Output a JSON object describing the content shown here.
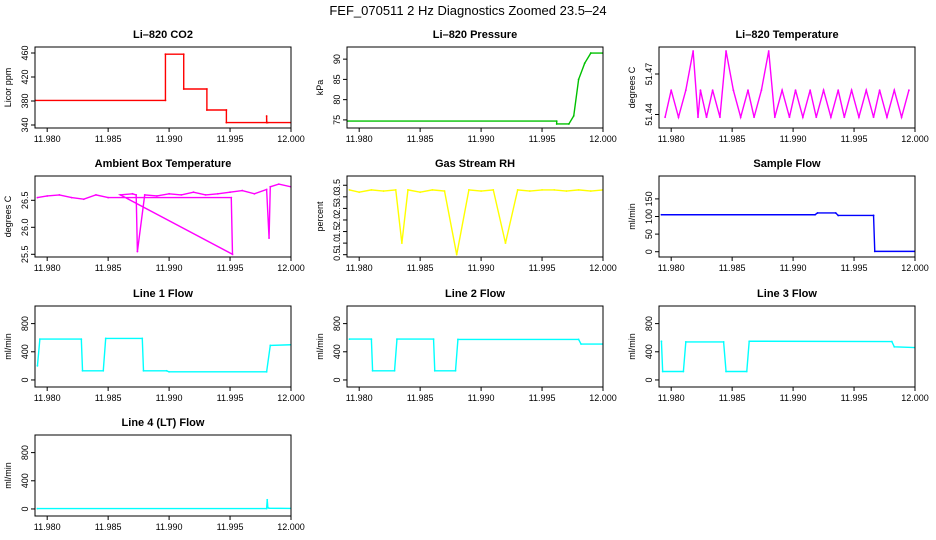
{
  "title": "FEF_070511  2 Hz Diagnostics Zoomed 23.5–24",
  "chart_data": [
    {
      "type": "line",
      "title": "Li–820 CO2",
      "ylabel": "Licor ppm",
      "color": "#ff0000",
      "xlim": [
        11.979,
        12.0
      ],
      "ylim": [
        335,
        470
      ],
      "yticks": [
        340,
        380,
        420,
        460
      ],
      "xticks": [
        11.98,
        11.985,
        11.99,
        11.995,
        12.0
      ],
      "xtick_labels": [
        "11.980",
        "11.985",
        "11.990",
        "11.995",
        "12.000"
      ],
      "x": [
        11.979,
        11.9897,
        11.9897,
        11.9912,
        11.9912,
        11.9931,
        11.9931,
        11.9947,
        11.9947,
        11.998,
        11.998,
        11.99801,
        11.9981,
        12.0
      ],
      "y": [
        381,
        381,
        458,
        458,
        400,
        400,
        365,
        365,
        344,
        344,
        355,
        344,
        344,
        344
      ]
    },
    {
      "type": "line",
      "title": "Li–820 Pressure",
      "ylabel": "kPa",
      "color": "#00c000",
      "xlim": [
        11.979,
        12.0
      ],
      "ylim": [
        73,
        93
      ],
      "yticks": [
        75,
        80,
        85,
        90
      ],
      "xticks": [
        11.98,
        11.985,
        11.99,
        11.995,
        12.0
      ],
      "xtick_labels": [
        "11.980",
        "11.985",
        "11.990",
        "11.995",
        "12.000"
      ],
      "x": [
        11.979,
        11.9962,
        11.9962,
        11.9972,
        11.9976,
        11.998,
        11.9985,
        11.999,
        12.0
      ],
      "y": [
        74.7,
        74.7,
        74,
        74,
        76,
        85,
        89,
        91.5,
        91.5
      ]
    },
    {
      "type": "line",
      "title": "Li–820 Temperature",
      "ylabel": "degrees C",
      "color": "#ff00ff",
      "xlim": [
        11.979,
        12.0
      ],
      "ylim": [
        51.43,
        51.49
      ],
      "yticks": [
        51.44,
        51.47
      ],
      "xticks": [
        11.98,
        11.985,
        11.99,
        11.995,
        12.0
      ],
      "xtick_labels": [
        "11.980",
        "11.985",
        "11.990",
        "11.995",
        "12.000"
      ],
      "x": [
        11.9795,
        11.98,
        11.9806,
        11.9812,
        11.9818,
        11.9822,
        11.9824,
        11.9829,
        11.9834,
        11.984,
        11.9845,
        11.9851,
        11.9857,
        11.9863,
        11.9868,
        11.9874,
        11.988,
        11.9885,
        11.9891,
        11.9897,
        11.9902,
        11.9908,
        11.9914,
        11.9919,
        11.9925,
        11.9931,
        11.9937,
        11.9942,
        11.9948,
        11.9954,
        11.996,
        11.9966,
        11.9971,
        11.9977,
        11.9983,
        11.9989,
        11.9995
      ],
      "y": [
        51.438,
        51.458,
        51.438,
        51.458,
        51.487,
        51.438,
        51.458,
        51.438,
        51.458,
        51.438,
        51.487,
        51.458,
        51.438,
        51.458,
        51.438,
        51.458,
        51.487,
        51.438,
        51.458,
        51.438,
        51.458,
        51.438,
        51.458,
        51.438,
        51.458,
        51.438,
        51.458,
        51.438,
        51.458,
        51.438,
        51.458,
        51.438,
        51.458,
        51.438,
        51.458,
        51.438,
        51.458
      ]
    },
    {
      "type": "line",
      "title": "Ambient Box Temperature",
      "ylabel": "degrees C",
      "color": "#ff00ff",
      "xlim": [
        11.979,
        12.0
      ],
      "ylim": [
        25.45,
        26.95
      ],
      "yticks": [
        25.5,
        26.0,
        26.5
      ],
      "ytick_labels": [
        "25.5",
        "26.0",
        "26.5"
      ],
      "xticks": [
        11.98,
        11.985,
        11.99,
        11.995,
        12.0
      ],
      "xtick_labels": [
        "11.980",
        "11.985",
        "11.990",
        "11.995",
        "12.000"
      ],
      "x": [
        11.9792,
        11.98,
        11.981,
        11.982,
        11.983,
        11.984,
        11.985,
        11.9951,
        11.9952,
        11.986,
        11.987,
        11.9873,
        11.9874,
        11.988,
        11.989,
        11.99,
        11.991,
        11.992,
        11.993,
        11.994,
        11.995,
        11.996,
        11.997,
        11.998,
        11.9982,
        11.9983,
        11.999,
        12.0
      ],
      "y": [
        26.55,
        26.58,
        26.6,
        26.55,
        26.52,
        26.6,
        26.55,
        26.55,
        25.5,
        26.6,
        26.62,
        26.6,
        25.55,
        26.6,
        26.58,
        26.62,
        26.6,
        26.65,
        26.6,
        26.62,
        26.65,
        26.68,
        26.62,
        26.7,
        25.8,
        26.75,
        26.8,
        26.75
      ]
    },
    {
      "type": "line",
      "title": "Gas Stream RH",
      "ylabel": "percent",
      "color": "#ffff00",
      "xlim": [
        11.979,
        12.0
      ],
      "ylim": [
        0.4,
        3.9
      ],
      "yticks": [
        0.5,
        1.0,
        1.5,
        2.0,
        2.5,
        3.0,
        3.5
      ],
      "ytick_labels": [
        "0.5",
        "1.0",
        "1.5",
        "2.0",
        "2.5",
        "3.0",
        "3.5"
      ],
      "xticks": [
        11.98,
        11.985,
        11.99,
        11.995,
        12.0
      ],
      "xtick_labels": [
        "11.980",
        "11.985",
        "11.990",
        "11.995",
        "12.000"
      ],
      "x": [
        11.9792,
        11.98,
        11.981,
        11.982,
        11.983,
        11.9835,
        11.984,
        11.985,
        11.986,
        11.987,
        11.988,
        11.989,
        11.99,
        11.991,
        11.992,
        11.993,
        11.994,
        11.995,
        11.996,
        11.997,
        11.998,
        11.999,
        12.0
      ],
      "y": [
        3.3,
        3.2,
        3.3,
        3.25,
        3.3,
        1.0,
        3.3,
        3.2,
        3.3,
        3.25,
        0.5,
        3.3,
        3.25,
        3.3,
        1.0,
        3.3,
        3.25,
        3.3,
        3.3,
        3.25,
        3.3,
        3.25,
        3.3
      ]
    },
    {
      "type": "line",
      "title": "Sample Flow",
      "ylabel": "ml/min",
      "color": "#0000ff",
      "xlim": [
        11.979,
        12.0
      ],
      "ylim": [
        -15,
        215
      ],
      "yticks": [
        0,
        50,
        100,
        150
      ],
      "xticks": [
        11.98,
        11.985,
        11.99,
        11.995,
        12.0
      ],
      "xtick_labels": [
        "11.980",
        "11.985",
        "11.990",
        "11.995",
        "12.000"
      ],
      "x": [
        11.9792,
        11.9918,
        11.992,
        11.9935,
        11.9937,
        11.9966,
        11.9967,
        12.0
      ],
      "y": [
        105,
        105,
        110,
        110,
        103,
        103,
        1,
        1
      ]
    },
    {
      "type": "line",
      "title": "Line 1 Flow",
      "ylabel": "ml/min",
      "color": "#00ffff",
      "xlim": [
        11.979,
        12.0
      ],
      "ylim": [
        -100,
        1050
      ],
      "yticks": [
        0,
        400,
        800
      ],
      "xticks": [
        11.98,
        11.985,
        11.99,
        11.995,
        12.0
      ],
      "xtick_labels": [
        "11.980",
        "11.985",
        "11.990",
        "11.995",
        "12.000"
      ],
      "x": [
        11.9792,
        11.9794,
        11.9828,
        11.9829,
        11.9846,
        11.9848,
        11.9878,
        11.9879,
        11.9898,
        11.99,
        11.998,
        11.9983,
        12.0
      ],
      "y": [
        200,
        580,
        580,
        130,
        130,
        590,
        590,
        130,
        130,
        115,
        115,
        490,
        500
      ]
    },
    {
      "type": "line",
      "title": "Line 2 Flow",
      "ylabel": "ml/min",
      "color": "#00ffff",
      "xlim": [
        11.979,
        12.0
      ],
      "ylim": [
        -100,
        1050
      ],
      "yticks": [
        0,
        400,
        800
      ],
      "xticks": [
        11.98,
        11.985,
        11.99,
        11.995,
        12.0
      ],
      "xtick_labels": [
        "11.980",
        "11.985",
        "11.990",
        "11.995",
        "12.000"
      ],
      "x": [
        11.9792,
        11.981,
        11.9811,
        11.9829,
        11.9831,
        11.9861,
        11.9862,
        11.9879,
        11.9881,
        11.998,
        11.9982,
        12.0
      ],
      "y": [
        580,
        580,
        130,
        130,
        580,
        580,
        130,
        130,
        575,
        575,
        510,
        510
      ]
    },
    {
      "type": "line",
      "title": "Line 3 Flow",
      "ylabel": "ml/min",
      "color": "#00ffff",
      "xlim": [
        11.979,
        12.0
      ],
      "ylim": [
        -100,
        1050
      ],
      "yticks": [
        0,
        400,
        800
      ],
      "xticks": [
        11.98,
        11.985,
        11.99,
        11.995,
        12.0
      ],
      "xtick_labels": [
        "11.980",
        "11.985",
        "11.990",
        "11.995",
        "12.000"
      ],
      "x": [
        11.9792,
        11.9793,
        11.981,
        11.9812,
        11.9843,
        11.9845,
        11.9862,
        11.9864,
        11.9981,
        11.9983,
        12.0
      ],
      "y": [
        550,
        120,
        120,
        540,
        540,
        120,
        120,
        550,
        545,
        470,
        460
      ]
    },
    {
      "type": "line",
      "title": "Line 4 (LT) Flow",
      "ylabel": "ml/min",
      "color": "#00ffff",
      "xlim": [
        11.979,
        12.0
      ],
      "ylim": [
        -100,
        1050
      ],
      "yticks": [
        0,
        400,
        800
      ],
      "xticks": [
        11.98,
        11.985,
        11.99,
        11.995,
        12.0
      ],
      "xtick_labels": [
        "11.980",
        "11.985",
        "11.990",
        "11.995",
        "12.000"
      ],
      "x": [
        11.9792,
        11.998,
        11.99805,
        11.9981,
        11.9982,
        12.0
      ],
      "y": [
        5,
        5,
        130,
        20,
        10,
        8
      ]
    }
  ]
}
